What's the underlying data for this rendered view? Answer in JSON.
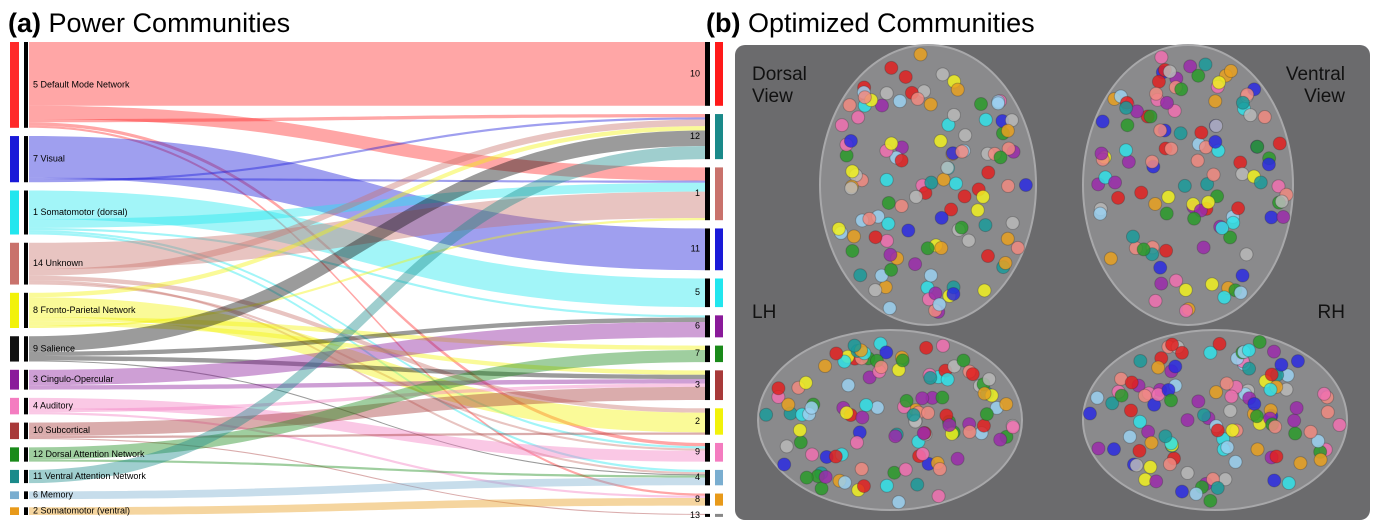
{
  "panel_a": {
    "label": "(a)",
    "title": "Power Communities",
    "left_nodes": [
      {
        "label": "5 Default Mode Network",
        "color": "#ff2a2a"
      },
      {
        "label": "7 Visual",
        "color": "#1a1ad8"
      },
      {
        "label": "1 Somatomotor (dorsal)",
        "color": "#22e6ee"
      },
      {
        "label": "14 Unknown",
        "color": "#c9726c"
      },
      {
        "label": "8 Fronto-Parietal Network",
        "color": "#f2f20a"
      },
      {
        "label": "9 Salience",
        "color": "#111111"
      },
      {
        "label": "3 Cingulo-Opercular",
        "color": "#8a1a9a"
      },
      {
        "label": "4 Auditory",
        "color": "#f47cc0"
      },
      {
        "label": "10 Subcortical",
        "color": "#a83a3a"
      },
      {
        "label": "12 Dorsal Attention Network",
        "color": "#1a8a1a"
      },
      {
        "label": "11 Ventral Attention Network",
        "color": "#1a8a8a"
      },
      {
        "label": "6 Memory",
        "color": "#7aaed0"
      },
      {
        "label": "2 Somatomotor (ventral)",
        "color": "#e89a1a"
      }
    ],
    "right_nodes": [
      {
        "label": "10",
        "color": "#ff1a1a"
      },
      {
        "label": "12",
        "color": "#1a8a8a"
      },
      {
        "label": "1",
        "color": "#c9726c"
      },
      {
        "label": "11",
        "color": "#1a1ad8"
      },
      {
        "label": "5",
        "color": "#22e6ee"
      },
      {
        "label": "6",
        "color": "#8a1a9a"
      },
      {
        "label": "7",
        "color": "#1a8a1a"
      },
      {
        "label": "3",
        "color": "#a83a3a"
      },
      {
        "label": "2",
        "color": "#f2f20a"
      },
      {
        "label": "9",
        "color": "#f47cc0"
      },
      {
        "label": "4",
        "color": "#7aaed0"
      },
      {
        "label": "8",
        "color": "#e89a1a"
      },
      {
        "label": "13",
        "color": "#888888"
      }
    ],
    "links": [
      {
        "source": 0,
        "target": 0,
        "value": 58
      },
      {
        "source": 0,
        "target": 2,
        "value": 12
      },
      {
        "source": 0,
        "target": 1,
        "value": 3
      },
      {
        "source": 0,
        "target": 9,
        "value": 3
      },
      {
        "source": 0,
        "target": 11,
        "value": 2
      },
      {
        "source": 1,
        "target": 3,
        "value": 38
      },
      {
        "source": 1,
        "target": 2,
        "value": 2
      },
      {
        "source": 1,
        "target": 1,
        "value": 2
      },
      {
        "source": 2,
        "target": 4,
        "value": 26
      },
      {
        "source": 2,
        "target": 2,
        "value": 8
      },
      {
        "source": 2,
        "target": 5,
        "value": 2
      },
      {
        "source": 2,
        "target": 9,
        "value": 2
      },
      {
        "source": 2,
        "target": 10,
        "value": 2
      },
      {
        "source": 3,
        "target": 2,
        "value": 24
      },
      {
        "source": 3,
        "target": 1,
        "value": 6
      },
      {
        "source": 3,
        "target": 8,
        "value": 4
      },
      {
        "source": 3,
        "target": 10,
        "value": 2
      },
      {
        "source": 3,
        "target": 9,
        "value": 2
      },
      {
        "source": 4,
        "target": 1,
        "value": 4
      },
      {
        "source": 4,
        "target": 8,
        "value": 18
      },
      {
        "source": 4,
        "target": 6,
        "value": 4
      },
      {
        "source": 4,
        "target": 7,
        "value": 4
      },
      {
        "source": 4,
        "target": 2,
        "value": 2
      },
      {
        "source": 5,
        "target": 1,
        "value": 14
      },
      {
        "source": 5,
        "target": 5,
        "value": 4
      },
      {
        "source": 5,
        "target": 7,
        "value": 4
      },
      {
        "source": 5,
        "target": 10,
        "value": 1
      },
      {
        "source": 6,
        "target": 5,
        "value": 14
      },
      {
        "source": 6,
        "target": 7,
        "value": 4
      },
      {
        "source": 7,
        "target": 9,
        "value": 10
      },
      {
        "source": 7,
        "target": 7,
        "value": 3
      },
      {
        "source": 7,
        "target": 11,
        "value": 2
      },
      {
        "source": 8,
        "target": 7,
        "value": 12
      },
      {
        "source": 8,
        "target": 8,
        "value": 2
      },
      {
        "source": 8,
        "target": 12,
        "value": 1
      },
      {
        "source": 9,
        "target": 6,
        "value": 11
      },
      {
        "source": 9,
        "target": 10,
        "value": 2
      },
      {
        "source": 10,
        "target": 1,
        "value": 12
      },
      {
        "source": 11,
        "target": 10,
        "value": 7
      },
      {
        "source": 12,
        "target": 11,
        "value": 7
      }
    ]
  },
  "panel_b": {
    "label": "(b)",
    "title": "Optimized Communities",
    "views": [
      [
        "Dorsal",
        "View"
      ],
      [
        "Ventral",
        "View"
      ],
      [
        "LH"
      ],
      [
        "RH"
      ]
    ]
  }
}
